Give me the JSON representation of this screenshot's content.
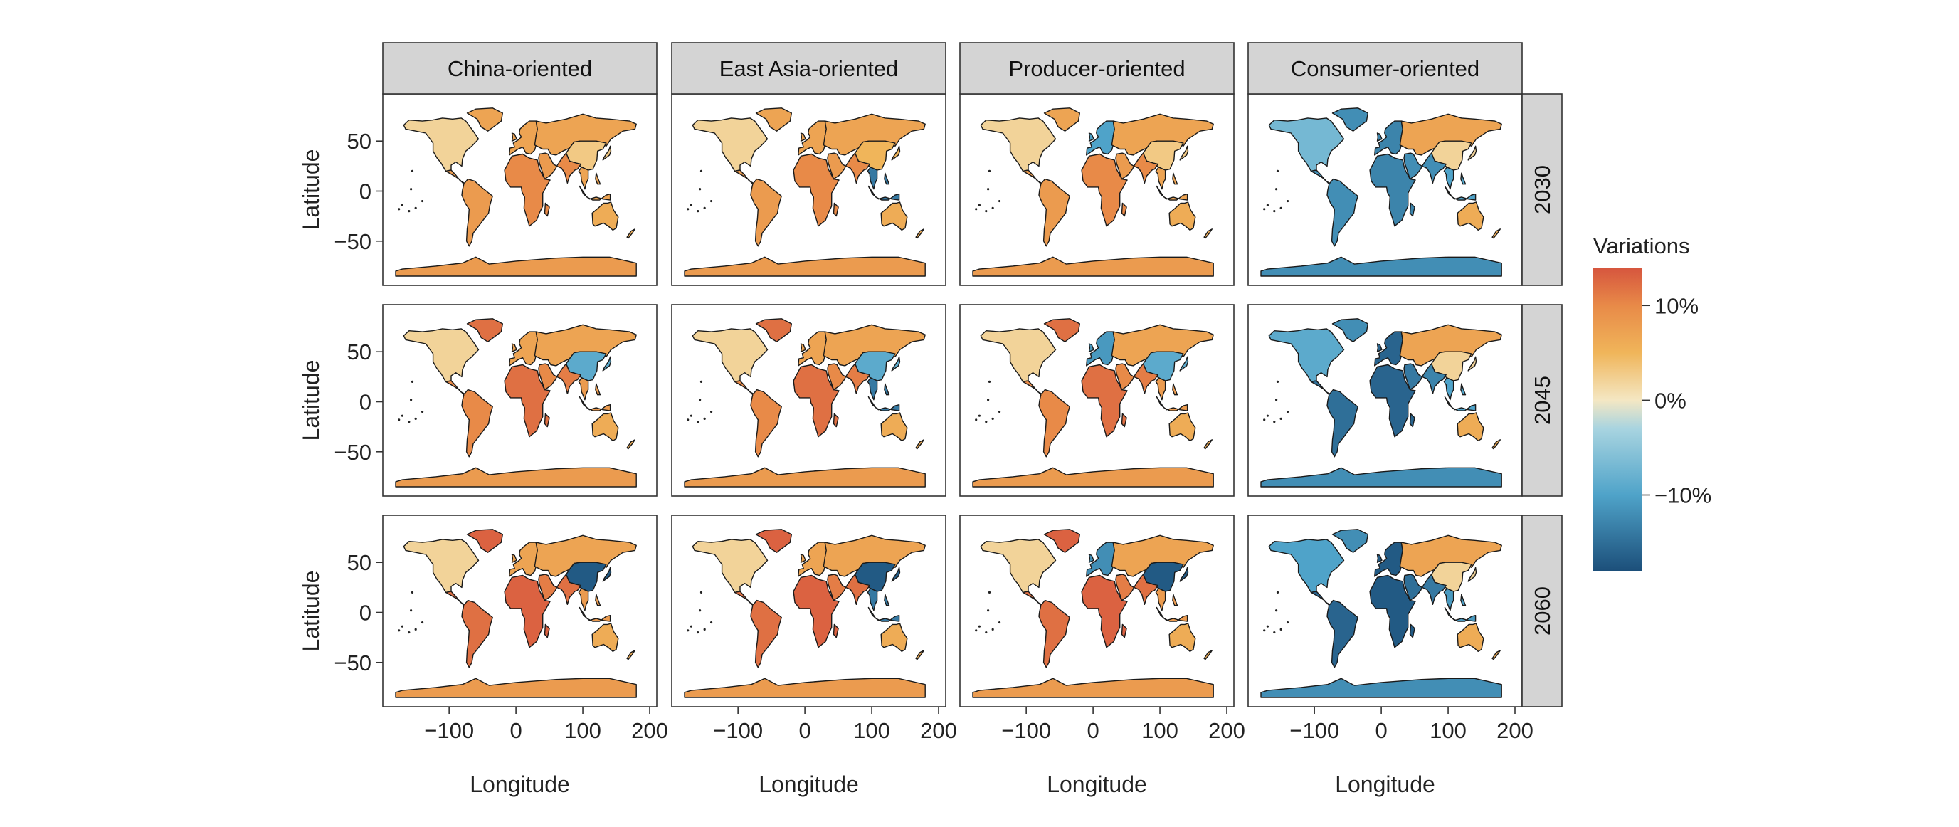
{
  "chart_data": {
    "type": "map",
    "facet_columns": [
      "China-oriented",
      "East Asia-oriented",
      "Producer-oriented",
      "Consumer-oriented"
    ],
    "facet_rows": [
      "2030",
      "2045",
      "2060"
    ],
    "xlabel": "Longitude",
    "ylabel": "Latitude",
    "xlim": [
      -180,
      200
    ],
    "ylim": [
      -90,
      90
    ],
    "x_ticks": [
      {
        "value": -100,
        "label": "−100"
      },
      {
        "value": 0,
        "label": "0"
      },
      {
        "value": 100,
        "label": "100"
      },
      {
        "value": 200,
        "label": "200"
      }
    ],
    "y_ticks": [
      {
        "value": 50,
        "label": "50"
      },
      {
        "value": 0,
        "label": "0"
      },
      {
        "value": -50,
        "label": "−50"
      }
    ],
    "legend": {
      "title": "Variations",
      "position": "right",
      "range": [
        -18,
        14
      ],
      "ticks": [
        {
          "value": 10,
          "label": "10%"
        },
        {
          "value": 0,
          "label": "0%"
        },
        {
          "value": -10,
          "label": "−10%"
        }
      ],
      "stops": [
        {
          "value": -18,
          "color": "#1c4f7a"
        },
        {
          "value": -10,
          "color": "#4fa3c9"
        },
        {
          "value": -3,
          "color": "#a8d4e0"
        },
        {
          "value": 0,
          "color": "#f4e7c3"
        },
        {
          "value": 5,
          "color": "#f0b55a"
        },
        {
          "value": 10,
          "color": "#e88a48"
        },
        {
          "value": 14,
          "color": "#d6553e"
        }
      ]
    },
    "regions": [
      "North America",
      "Greenland",
      "Latin America",
      "Europe",
      "Africa",
      "Middle East",
      "Russia/Central Asia",
      "China",
      "South Asia",
      "Southeast Asia",
      "Oceania",
      "Antarctica"
    ],
    "panels": [
      {
        "column": "China-oriented",
        "row": "2030",
        "values": {
          "North America": 2,
          "Greenland": 7,
          "Latin America": 8,
          "Europe": 7,
          "Africa": 10,
          "Middle East": 8,
          "Russia/Central Asia": 7,
          "China": 3,
          "South Asia": 10,
          "Southeast Asia": 7,
          "Oceania": 6,
          "Antarctica": 8
        }
      },
      {
        "column": "East Asia-oriented",
        "row": "2030",
        "values": {
          "North America": 2,
          "Greenland": 7,
          "Latin America": 8,
          "Europe": 7,
          "Africa": 10,
          "Middle East": 8,
          "Russia/Central Asia": 7,
          "China": 5,
          "South Asia": 10,
          "Southeast Asia": -14,
          "Oceania": 6,
          "Antarctica": 8
        }
      },
      {
        "column": "Producer-oriented",
        "row": "2030",
        "values": {
          "North America": 2,
          "Greenland": 7,
          "Latin America": 8,
          "Europe": -10,
          "Africa": 10,
          "Middle East": 8,
          "Russia/Central Asia": 7,
          "China": 3,
          "South Asia": 10,
          "Southeast Asia": 7,
          "Oceania": 6,
          "Antarctica": 8
        }
      },
      {
        "column": "Consumer-oriented",
        "row": "2030",
        "values": {
          "North America": -7,
          "Greenland": -12,
          "Latin America": -12,
          "Europe": -13,
          "Africa": -13,
          "Middle East": -12,
          "Russia/Central Asia": 7,
          "China": 2,
          "South Asia": -12,
          "Southeast Asia": -10,
          "Oceania": 6,
          "Antarctica": -12
        }
      },
      {
        "column": "China-oriented",
        "row": "2045",
        "values": {
          "North America": 2,
          "Greenland": 12,
          "Latin America": 10,
          "Europe": 7,
          "Africa": 12,
          "Middle East": 10,
          "Russia/Central Asia": 7,
          "China": -9,
          "South Asia": 11,
          "Southeast Asia": 8,
          "Oceania": 6,
          "Antarctica": 8
        }
      },
      {
        "column": "East Asia-oriented",
        "row": "2045",
        "values": {
          "North America": 2,
          "Greenland": 12,
          "Latin America": 10,
          "Europe": 7,
          "Africa": 12,
          "Middle East": 10,
          "Russia/Central Asia": 7,
          "China": -9,
          "South Asia": 11,
          "Southeast Asia": -14,
          "Oceania": 6,
          "Antarctica": 8
        }
      },
      {
        "column": "Producer-oriented",
        "row": "2045",
        "values": {
          "North America": 2,
          "Greenland": 12,
          "Latin America": 10,
          "Europe": -11,
          "Africa": 12,
          "Middle East": 10,
          "Russia/Central Asia": 7,
          "China": -9,
          "South Asia": 11,
          "Southeast Asia": 8,
          "Oceania": 6,
          "Antarctica": 8
        }
      },
      {
        "column": "Consumer-oriented",
        "row": "2045",
        "values": {
          "North America": -9,
          "Greenland": -12,
          "Latin America": -15,
          "Europe": -16,
          "Africa": -16,
          "Middle East": -14,
          "Russia/Central Asia": 7,
          "China": 2,
          "South Asia": -13,
          "Southeast Asia": -10,
          "Oceania": 6,
          "Antarctica": -12
        }
      },
      {
        "column": "China-oriented",
        "row": "2060",
        "values": {
          "North America": 2,
          "Greenland": 13,
          "Latin America": 12,
          "Europe": 7,
          "Africa": 13,
          "Middle East": 11,
          "Russia/Central Asia": 7,
          "China": -17,
          "South Asia": 12,
          "Southeast Asia": 8,
          "Oceania": 6,
          "Antarctica": 8
        }
      },
      {
        "column": "East Asia-oriented",
        "row": "2060",
        "values": {
          "North America": 2,
          "Greenland": 13,
          "Latin America": 12,
          "Europe": 7,
          "Africa": 13,
          "Middle East": 11,
          "Russia/Central Asia": 7,
          "China": -17,
          "South Asia": 12,
          "Southeast Asia": -14,
          "Oceania": 6,
          "Antarctica": 8
        }
      },
      {
        "column": "Producer-oriented",
        "row": "2060",
        "values": {
          "North America": 2,
          "Greenland": 13,
          "Latin America": 12,
          "Europe": -12,
          "Africa": 13,
          "Middle East": 11,
          "Russia/Central Asia": 7,
          "China": -17,
          "South Asia": 12,
          "Southeast Asia": 8,
          "Oceania": 6,
          "Antarctica": 8
        }
      },
      {
        "column": "Consumer-oriented",
        "row": "2060",
        "values": {
          "North America": -10,
          "Greenland": -12,
          "Latin America": -16,
          "Europe": -17,
          "Africa": -17,
          "Middle East": -15,
          "Russia/Central Asia": 7,
          "China": 2,
          "South Asia": -14,
          "Southeast Asia": -11,
          "Oceania": 6,
          "Antarctica": -12
        }
      }
    ]
  }
}
